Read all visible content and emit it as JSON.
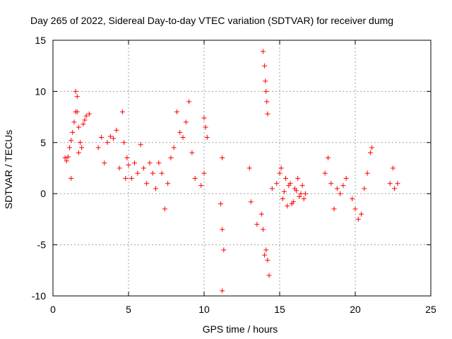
{
  "chart_data": {
    "type": "scatter",
    "title": "Day 265 of 2022, Sidereal Day-to-day VTEC variation (SDTVAR) for receiver dumg",
    "xlabel": "GPS time / hours",
    "ylabel": "SDTVAR / TECUs",
    "xlim": [
      0,
      25
    ],
    "ylim": [
      -10,
      15
    ],
    "xticks": [
      0,
      5,
      10,
      15,
      20,
      25
    ],
    "yticks": [
      -10,
      -5,
      0,
      5,
      10,
      15
    ],
    "grid": true,
    "marker": "+",
    "color": "#ff0000",
    "series": [
      {
        "name": "SDTVAR",
        "x": [
          0.8,
          0.9,
          1.0,
          1.1,
          1.2,
          1.3,
          1.4,
          1.5,
          1.6,
          1.7,
          1.8,
          1.9,
          2.0,
          2.1,
          2.2,
          2.4,
          1.2,
          1.5,
          1.6,
          1.7,
          3.0,
          3.2,
          3.4,
          3.6,
          3.8,
          4.0,
          4.2,
          4.4,
          4.6,
          4.7,
          4.8,
          4.9,
          5.0,
          5.2,
          5.4,
          5.6,
          5.8,
          6.0,
          6.2,
          6.4,
          6.6,
          6.8,
          7.0,
          7.2,
          7.4,
          7.6,
          7.8,
          8.0,
          8.2,
          8.4,
          8.6,
          8.8,
          9.0,
          9.2,
          9.4,
          9.8,
          10.0,
          10.1,
          10.2,
          10.0,
          11.1,
          11.2,
          11.3,
          11.2,
          11.2,
          13.0,
          13.1,
          13.5,
          13.8,
          13.9,
          14.0,
          14.05,
          14.1,
          14.15,
          14.2,
          14.3,
          14.0,
          14.1,
          14.2,
          13.9,
          14.5,
          14.8,
          15.0,
          15.2,
          15.4,
          15.6,
          15.8,
          16.0,
          16.2,
          16.4,
          16.6,
          15.1,
          15.3,
          15.5,
          15.7,
          15.9,
          16.1,
          16.3,
          16.5,
          16.7,
          18.0,
          18.2,
          18.4,
          18.6,
          18.8,
          19.0,
          19.2,
          19.4,
          19.8,
          20.0,
          20.2,
          20.4,
          20.6,
          20.8,
          21.0,
          21.1,
          22.3,
          22.5,
          22.6,
          22.8
        ],
        "y": [
          3.5,
          3.2,
          3.6,
          4.5,
          5.2,
          6.0,
          7.0,
          8.0,
          9.5,
          6.5,
          5.0,
          4.5,
          6.8,
          7.2,
          7.6,
          7.8,
          1.5,
          10.0,
          8.0,
          4.0,
          4.5,
          5.5,
          3.0,
          5.0,
          5.6,
          5.4,
          6.2,
          2.5,
          8.0,
          5.0,
          1.5,
          3.5,
          2.8,
          1.5,
          3.0,
          2.0,
          4.8,
          2.5,
          1.0,
          3.0,
          2.0,
          0.5,
          3.0,
          2.0,
          -1.5,
          1.0,
          3.5,
          4.5,
          8.0,
          6.0,
          5.5,
          7.0,
          9.0,
          4.0,
          1.5,
          0.8,
          7.4,
          6.5,
          5.5,
          2.0,
          -1.0,
          -3.5,
          -5.5,
          -9.5,
          3.5,
          2.5,
          -0.8,
          -3.0,
          -2.0,
          13.9,
          12.5,
          11.0,
          10.0,
          9.0,
          7.8,
          -8.0,
          -6.0,
          -5.5,
          -6.5,
          -3.5,
          0.5,
          1.0,
          2.0,
          -0.5,
          1.5,
          0.8,
          -1.0,
          0.5,
          1.5,
          0.0,
          -0.5,
          2.5,
          0.2,
          -1.2,
          1.0,
          -0.8,
          0.3,
          -0.3,
          0.8,
          0.0,
          2.0,
          3.5,
          1.0,
          -1.5,
          0.5,
          0.0,
          0.8,
          1.5,
          -0.5,
          -1.5,
          -2.5,
          -2.0,
          0.5,
          2.0,
          4.0,
          4.5,
          1.0,
          2.5,
          0.5,
          1.0
        ]
      }
    ]
  }
}
